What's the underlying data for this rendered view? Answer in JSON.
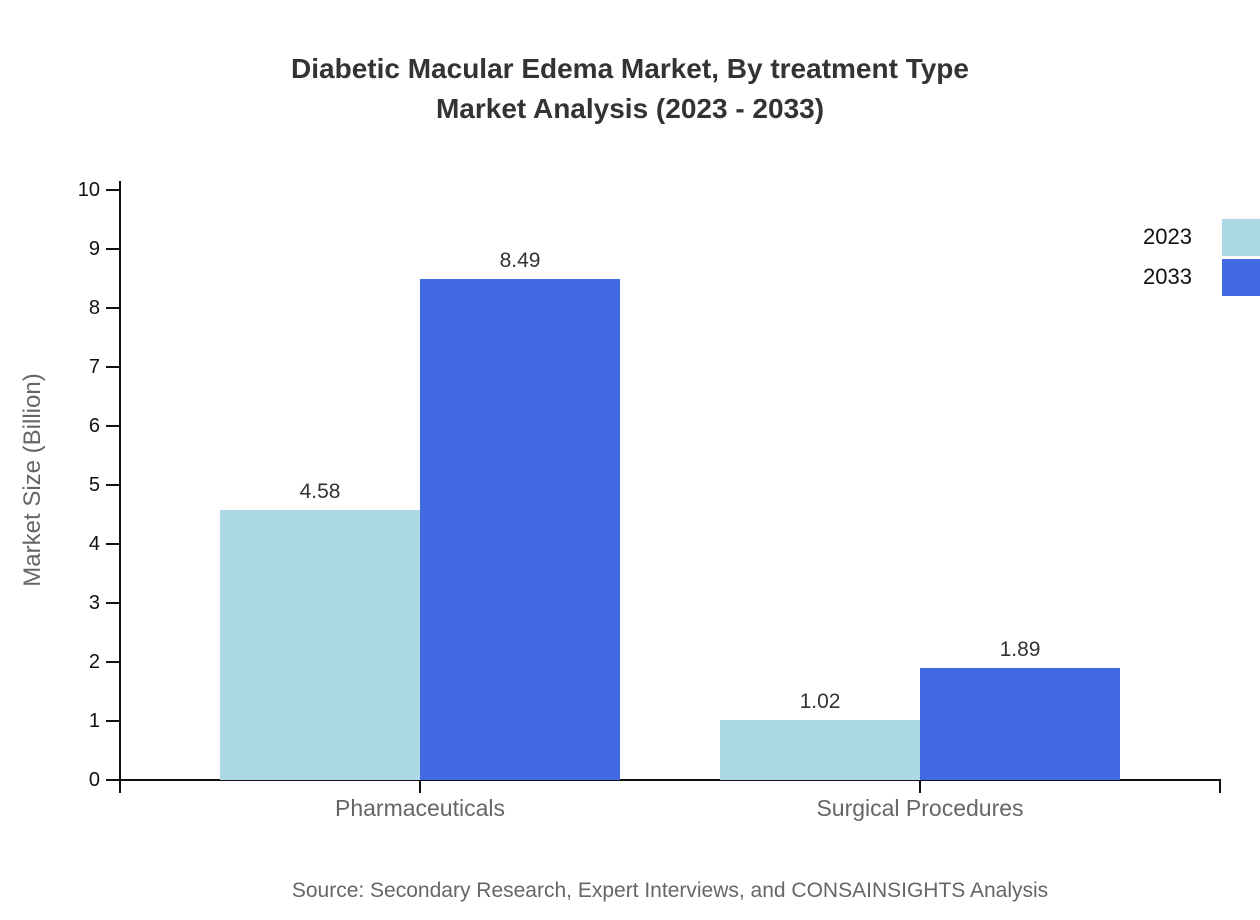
{
  "title": {
    "line1": "Diabetic Macular Edema Market, By treatment Type",
    "line2": "Market Analysis (2023 - 2033)"
  },
  "source_note": "Source: Secondary Research, Expert Interviews, and CONSAINSIGHTS Analysis",
  "chart_data": {
    "type": "bar",
    "title": "Diabetic Macular Edema Market, By treatment Type Market Analysis (2023 - 2033)",
    "categories": [
      "Pharmaceuticals",
      "Surgical Procedures"
    ],
    "series": [
      {
        "name": "2023",
        "color": "#ADD8E6",
        "values": [
          4.58,
          1.02
        ]
      },
      {
        "name": "2033",
        "color": "#4169E1",
        "values": [
          8.49,
          1.89
        ]
      }
    ],
    "xlabel": "",
    "ylabel": "Market Size (Billion)",
    "ylim": [
      0,
      10
    ],
    "yticks": [
      0,
      1,
      2,
      3,
      4,
      5,
      6,
      7,
      8,
      9,
      10
    ],
    "grid": false,
    "legend_position": "top-right",
    "value_label_decimals": 2
  },
  "colors": {
    "series_2023": "#ADD8E6",
    "series_2033": "#4169E1",
    "title_text": "#333333",
    "axis_line": "#111111",
    "tick_label": "#111111",
    "category_label": "#666666",
    "value_label": "#333333",
    "source_text": "#666666",
    "background": "#FFFFFF"
  }
}
